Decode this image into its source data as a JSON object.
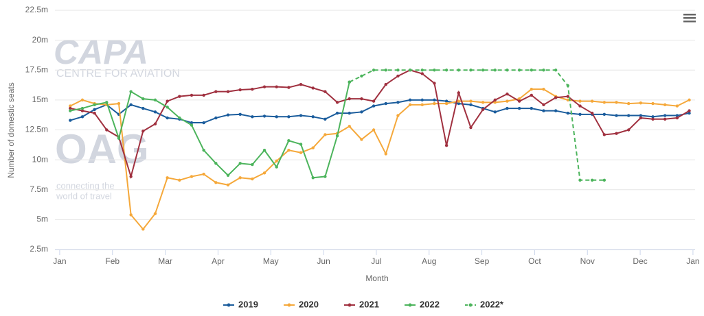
{
  "chart_data": {
    "type": "line",
    "y_label": "Number of domestic seats",
    "x_label": "Month",
    "watermark": {
      "brand": "CAPA",
      "brand_sub": "CENTRE FOR AVIATION",
      "logo": "OAG",
      "tagline_1": "connecting the",
      "tagline_2": "world of travel"
    },
    "grid": true,
    "legend": "bottom",
    "xlim": [
      -0.09,
      12.04
    ],
    "xticks": [
      {
        "value": 0,
        "label": "Jan"
      },
      {
        "value": 1,
        "label": "Feb"
      },
      {
        "value": 2,
        "label": "Mar"
      },
      {
        "value": 3,
        "label": "Apr"
      },
      {
        "value": 4,
        "label": "May"
      },
      {
        "value": 5,
        "label": "Jun"
      },
      {
        "value": 6,
        "label": "Jul"
      },
      {
        "value": 7,
        "label": "Aug"
      },
      {
        "value": 8,
        "label": "Sep"
      },
      {
        "value": 9,
        "label": "Oct"
      },
      {
        "value": 10,
        "label": "Nov"
      },
      {
        "value": 11,
        "label": "Dec"
      },
      {
        "value": 12,
        "label": "Jan"
      }
    ],
    "ylim": [
      2.5,
      22.5
    ],
    "yticks": [
      {
        "value": 2.5,
        "label": "2.5m"
      },
      {
        "value": 5,
        "label": "5m"
      },
      {
        "value": 7.5,
        "label": "7.5m"
      },
      {
        "value": 10,
        "label": "10m"
      },
      {
        "value": 12.5,
        "label": "12.5m"
      },
      {
        "value": 15,
        "label": "15m"
      },
      {
        "value": 17.5,
        "label": "17.5m"
      },
      {
        "value": 20,
        "label": "20m"
      },
      {
        "value": 22.5,
        "label": "22.5m"
      }
    ],
    "x": [
      0.2,
      0.43,
      0.66,
      0.89,
      1.12,
      1.35,
      1.58,
      1.81,
      2.04,
      2.27,
      2.5,
      2.73,
      2.96,
      3.19,
      3.42,
      3.65,
      3.88,
      4.11,
      4.34,
      4.57,
      4.8,
      5.03,
      5.26,
      5.49,
      5.72,
      5.95,
      6.18,
      6.41,
      6.64,
      6.87,
      7.1,
      7.33,
      7.56,
      7.79,
      8.02,
      8.25,
      8.48,
      8.71,
      8.94,
      9.17,
      9.4,
      9.63,
      9.86,
      10.09,
      10.32,
      10.55,
      10.78,
      11.01,
      11.24,
      11.47,
      11.7,
      11.93
    ],
    "series": [
      {
        "name": "2019",
        "color": "#1a5c9c",
        "dashed": false,
        "values": [
          13.3,
          13.6,
          14.2,
          14.6,
          13.8,
          14.6,
          14.3,
          14.0,
          13.5,
          13.4,
          13.1,
          13.1,
          13.5,
          13.75,
          13.8,
          13.6,
          13.65,
          13.6,
          13.6,
          13.7,
          13.6,
          13.4,
          13.9,
          13.9,
          14.0,
          14.5,
          14.7,
          14.8,
          15.0,
          15.0,
          15.0,
          14.9,
          14.7,
          14.6,
          14.3,
          14.0,
          14.3,
          14.3,
          14.3,
          14.1,
          14.1,
          13.9,
          13.8,
          13.8,
          13.8,
          13.7,
          13.7,
          13.7,
          13.6,
          13.7,
          13.7,
          13.9
        ]
      },
      {
        "name": "2020",
        "color": "#f5a83a",
        "dashed": false,
        "values": [
          14.5,
          15.0,
          14.7,
          14.6,
          14.7,
          5.4,
          4.2,
          5.5,
          8.5,
          8.3,
          8.6,
          8.8,
          8.1,
          7.9,
          8.5,
          8.4,
          8.9,
          9.9,
          10.8,
          10.6,
          11.0,
          12.1,
          12.2,
          12.8,
          11.7,
          12.5,
          10.5,
          13.7,
          14.6,
          14.6,
          14.7,
          14.7,
          14.9,
          14.9,
          14.8,
          14.8,
          14.9,
          15.1,
          15.9,
          15.9,
          15.3,
          15.0,
          14.9,
          14.9,
          14.8,
          14.8,
          14.7,
          14.75,
          14.7,
          14.6,
          14.5,
          15.0
        ]
      },
      {
        "name": "2021",
        "color": "#a0303f",
        "dashed": false,
        "values": [
          14.3,
          14.1,
          13.9,
          12.5,
          11.9,
          8.6,
          12.4,
          13.0,
          14.9,
          15.3,
          15.4,
          15.4,
          15.7,
          15.7,
          15.85,
          15.9,
          16.1,
          16.1,
          16.05,
          16.3,
          16.0,
          15.7,
          14.8,
          15.1,
          15.1,
          14.9,
          16.3,
          17.0,
          17.5,
          17.2,
          16.4,
          11.2,
          15.6,
          12.7,
          14.2,
          15.0,
          15.5,
          14.9,
          15.4,
          14.6,
          15.2,
          15.3,
          14.5,
          13.9,
          12.1,
          12.2,
          12.5,
          13.5,
          13.4,
          13.4,
          13.5,
          14.1
        ]
      },
      {
        "name": "2022",
        "color": "#4cb45c",
        "dashed": false,
        "values": [
          14.1,
          14.3,
          14.6,
          14.8,
          11.8,
          15.7,
          15.1,
          15.0,
          14.4,
          13.5,
          12.9,
          10.8,
          9.7,
          8.7,
          9.7,
          9.6,
          10.8,
          9.4,
          11.6,
          11.3,
          8.5,
          8.6,
          12.0,
          16.5,
          null,
          null,
          null,
          null,
          null,
          null,
          null,
          null,
          null,
          null,
          null,
          null,
          null,
          null,
          null,
          null,
          null,
          null,
          null,
          null,
          null,
          null,
          null,
          null,
          null,
          null,
          null,
          null
        ]
      },
      {
        "name": "2022*",
        "color": "#4cb45c",
        "dashed": true,
        "values": [
          null,
          null,
          null,
          null,
          null,
          null,
          null,
          null,
          null,
          null,
          null,
          null,
          null,
          null,
          null,
          null,
          null,
          null,
          null,
          null,
          null,
          null,
          null,
          16.5,
          17.0,
          17.5,
          17.5,
          17.5,
          17.5,
          17.5,
          17.5,
          17.5,
          17.5,
          17.5,
          17.5,
          17.5,
          17.5,
          17.5,
          17.5,
          17.5,
          17.5,
          16.2,
          8.3,
          8.3,
          8.3,
          null,
          null,
          null,
          null,
          null,
          null,
          null
        ]
      }
    ]
  }
}
